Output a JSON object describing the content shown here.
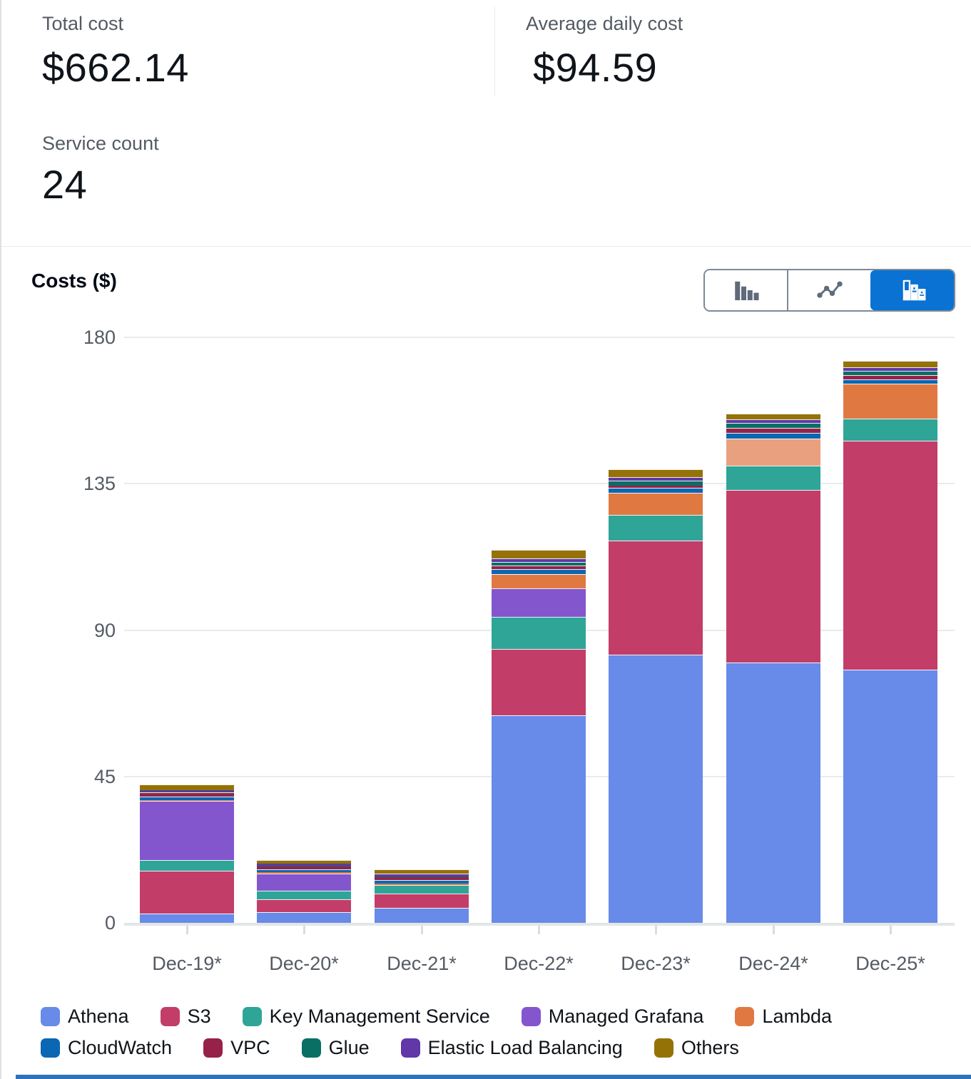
{
  "stats": {
    "total_cost": {
      "label": "Total cost",
      "value": "$662.14"
    },
    "average_daily_cost": {
      "label": "Average daily cost",
      "value": "$94.59"
    },
    "service_count": {
      "label": "Service count",
      "value": "24"
    }
  },
  "toolbar": {
    "selected": "stacked-bar",
    "buttons": [
      {
        "id": "bar",
        "icon": "grouped-bar-chart-icon"
      },
      {
        "id": "line",
        "icon": "line-chart-icon"
      },
      {
        "id": "stacked-bar",
        "icon": "stacked-bar-chart-icon"
      }
    ]
  },
  "colors": {
    "accent": "#0972d3",
    "toolbar_icon_gray": "#5f6b7a",
    "grid": "#e9ebed",
    "axis_text": "#545b64",
    "scrollbar": "#2e73b8"
  },
  "chart_data": {
    "type": "bar",
    "stacked": true,
    "title": "Costs ($)",
    "xlabel": "",
    "ylabel": "Costs ($)",
    "ylim": [
      0,
      180
    ],
    "yticks": [
      0,
      45,
      90,
      135,
      180
    ],
    "grid": true,
    "legend_position": "bottom",
    "categories": [
      "Dec-19*",
      "Dec-20*",
      "Dec-21*",
      "Dec-22*",
      "Dec-23*",
      "Dec-24*",
      "Dec-25*"
    ],
    "series": [
      {
        "name": "Athena",
        "color": "#688ae8",
        "legend_row": 1,
        "values": [
          2.9,
          3.3,
          4.6,
          63.7,
          82.5,
          80.1,
          77.9
        ]
      },
      {
        "name": "S3",
        "color": "#c33d69",
        "legend_row": 1,
        "values": [
          13.0,
          4.0,
          4.4,
          20.4,
          35.1,
          52.9,
          70.2
        ]
      },
      {
        "name": "Key Management Service",
        "color": "#2ea597",
        "legend_row": 1,
        "values": [
          3.3,
          2.6,
          2.6,
          9.9,
          7.7,
          7.5,
          6.8
        ]
      },
      {
        "name": "Managed Grafana",
        "color": "#8456ce",
        "legend_row": 1,
        "values": [
          18.2,
          5.3,
          0,
          8.8,
          0,
          0,
          0
        ]
      },
      {
        "name": "Lambda",
        "color": "#e07941",
        "legend_row": 1,
        "values": [
          0.4,
          0.3,
          0.4,
          4.4,
          7.0,
          8.3,
          10.8
        ]
      },
      {
        "name": "CloudWatch",
        "color": "#0b67b3",
        "legend_row": 2,
        "values": [
          1.1,
          0.9,
          1.1,
          1.5,
          1.5,
          1.8,
          1.3
        ]
      },
      {
        "name": "VPC",
        "color": "#962249",
        "legend_row": 2,
        "values": [
          1.3,
          1.1,
          1.1,
          1.1,
          0.7,
          1.5,
          1.3
        ]
      },
      {
        "name": "Glue",
        "color": "#096f64",
        "legend_row": 2,
        "values": [
          0.1,
          0.1,
          0.1,
          1.1,
          1.5,
          1.5,
          1.5
        ]
      },
      {
        "name": "Elastic Load Balancing",
        "color": "#6237a7",
        "legend_row": 2,
        "values": [
          0.5,
          0.5,
          0.9,
          1.1,
          1.1,
          1.1,
          0.9
        ]
      },
      {
        "name": "Others",
        "color": "#947206",
        "legend_row": 2,
        "values": [
          1.8,
          1.3,
          1.3,
          2.6,
          2.4,
          1.8,
          2.0
        ]
      }
    ],
    "color_overrides": [
      {
        "series": "Lambda",
        "category": "Dec-24*",
        "color": "#e9a07e"
      }
    ]
  }
}
